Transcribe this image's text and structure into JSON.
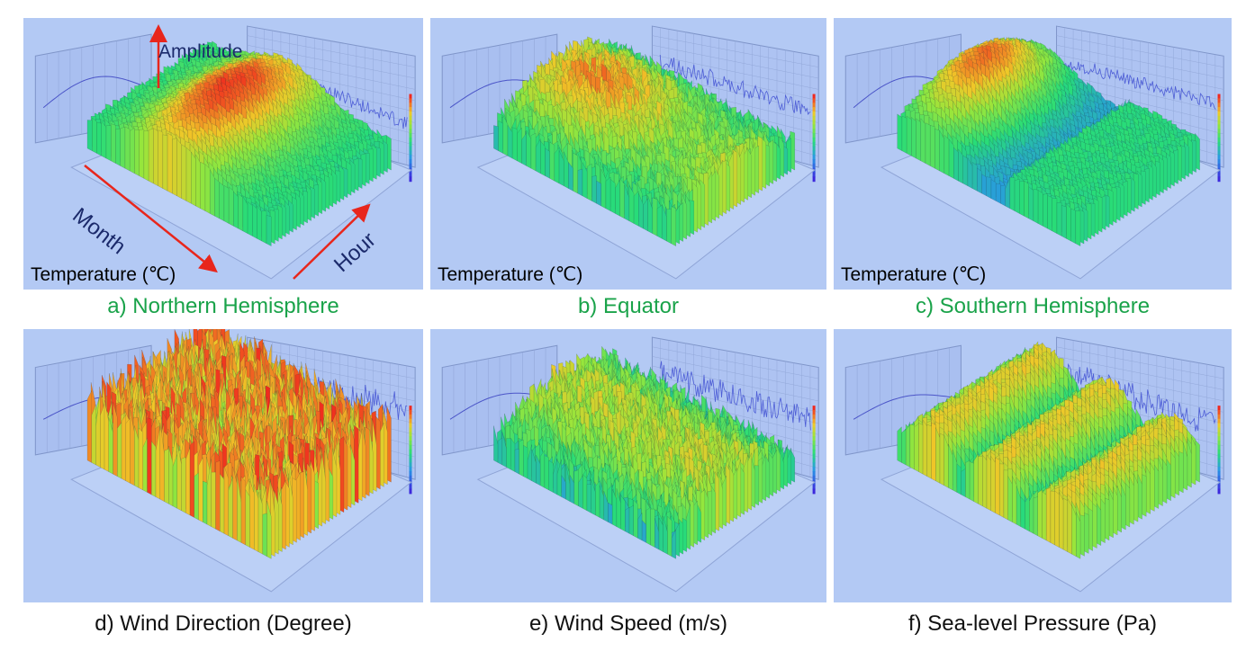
{
  "panels": [
    {
      "id": "a",
      "caption": "a) Northern Hemisphere",
      "variable_label": "Temperature (℃)",
      "caption_color": "#1aa34a"
    },
    {
      "id": "b",
      "caption": "b) Equator",
      "variable_label": "Temperature (℃)",
      "caption_color": "#1aa34a"
    },
    {
      "id": "c",
      "caption": "c) Southern Hemisphere",
      "variable_label": "Temperature (℃)",
      "caption_color": "#1aa34a"
    },
    {
      "id": "d",
      "caption": "d) Wind Direction (Degree)",
      "variable_label": "",
      "caption_color": "#111111"
    },
    {
      "id": "e",
      "caption": "e) Wind Speed (m/s)",
      "variable_label": "",
      "caption_color": "#111111"
    },
    {
      "id": "f",
      "caption": "f) Sea-level Pressure (Pa)",
      "variable_label": "",
      "caption_color": "#111111"
    }
  ],
  "annotations": {
    "amplitude": "Amplitude",
    "month": "Month",
    "hour": "Hour"
  },
  "colors": {
    "panel_background": "#b3c9f4",
    "arrow": "#e8261c",
    "surface_low": "#3a2bd6",
    "surface_mid": "#22e07a",
    "surface_high": "#f0201a",
    "caption_green": "#1aa34a"
  }
}
